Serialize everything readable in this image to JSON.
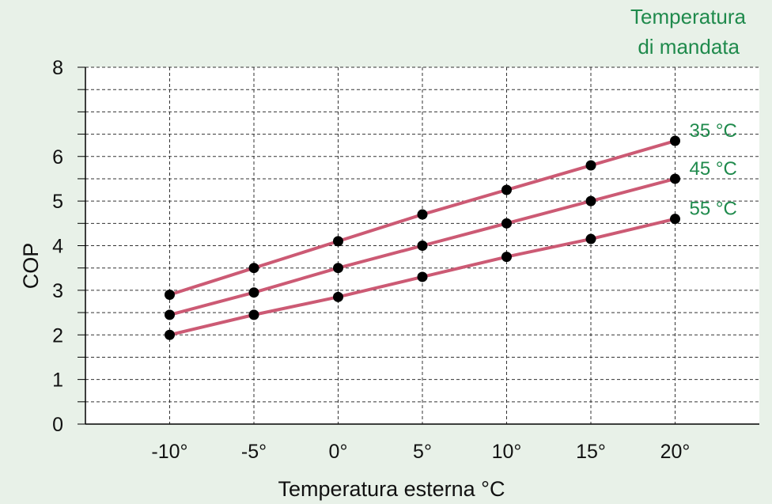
{
  "colors": {
    "background": "#e8f1e8",
    "plot_background": "#ffffff",
    "line": "#cc5a74",
    "marker": "#000000",
    "legend_text": "#1f8a4c",
    "grid": "#333333"
  },
  "chart_data": {
    "type": "line",
    "xlabel": "Temperatura esterna °C",
    "ylabel": "COP",
    "legend_title_lines": [
      "Temperatura",
      "di mandata"
    ],
    "legend_placement": "top-right",
    "xlim": [
      -15,
      25
    ],
    "ylim": [
      0,
      8
    ],
    "grid": true,
    "x": [
      -10,
      -5,
      0,
      5,
      10,
      15,
      20
    ],
    "x_tick_labels": [
      "-10°",
      "-5°",
      "0°",
      "5°",
      "10°",
      "15°",
      "20°"
    ],
    "y_ticks": [
      0,
      1,
      2,
      3,
      4,
      5,
      6,
      8
    ],
    "y_tick_labels": [
      "0",
      "1",
      "2",
      "3",
      "4",
      "5",
      "6",
      "8"
    ],
    "series": [
      {
        "name": "35 °C",
        "values": [
          2.9,
          3.5,
          4.1,
          4.7,
          5.25,
          5.8,
          6.35
        ]
      },
      {
        "name": "45 °C",
        "values": [
          2.45,
          2.95,
          3.5,
          4.0,
          4.5,
          5.0,
          5.5
        ]
      },
      {
        "name": "55 °C",
        "values": [
          2.0,
          2.45,
          2.85,
          3.3,
          3.75,
          4.15,
          4.6
        ]
      }
    ]
  }
}
